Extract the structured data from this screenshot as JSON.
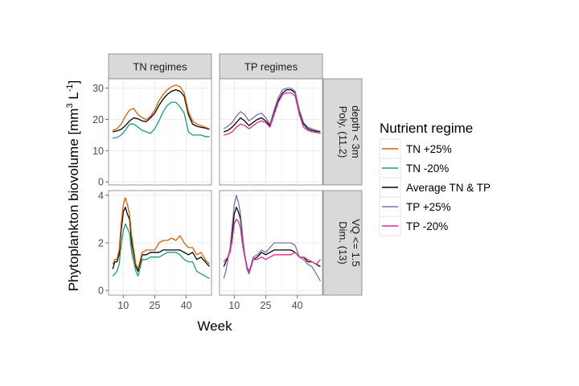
{
  "chart_data": {
    "type": "line",
    "ylabel_main": "Phytoplankton biovolume [mm",
    "ylabel_sup1": "3",
    "ylabel_mid": " L",
    "ylabel_sup2": "-1",
    "ylabel_end": "]",
    "xlabel": "Week",
    "column_strips": [
      "TN regimes",
      "TP regimes"
    ],
    "row_strips": [
      [
        "Poly. (11.2)",
        "depth < 3m"
      ],
      [
        "Dim. (13)",
        "VQ <= 1.5"
      ]
    ],
    "x_ticks": [
      "10",
      "25",
      "40"
    ],
    "x_tick_values": [
      10,
      25,
      40
    ],
    "xlim": [
      3,
      52
    ],
    "rows": [
      {
        "ylim": [
          -1,
          33
        ],
        "y_ticks": [
          "0",
          "10",
          "20",
          "30"
        ],
        "y_tick_values": [
          0,
          10,
          20,
          30
        ]
      },
      {
        "ylim": [
          -0.2,
          4.2
        ],
        "y_ticks": [
          "0",
          "2",
          "4"
        ],
        "y_tick_values": [
          0,
          2,
          4
        ]
      }
    ],
    "legend": {
      "title": "Nutrient regime",
      "placement": "right",
      "entries": [
        {
          "label": "TN +25%",
          "color": "#D95F02"
        },
        {
          "label": "TN -20%",
          "color": "#1B9E77"
        },
        {
          "label": "Average TN & TP",
          "color": "#000000"
        },
        {
          "label": "TP +25%",
          "color": "#7570B3"
        },
        {
          "label": "TP -20%",
          "color": "#E7298A"
        }
      ]
    },
    "panels": [
      {
        "column": 0,
        "row": 0,
        "series": [
          {
            "legend_index": 2,
            "x": [
              5,
              7,
              9,
              11,
              13,
              15,
              17,
              19,
              21,
              23,
              25,
              27,
              29,
              31,
              33,
              35,
              37,
              39,
              41,
              43,
              45,
              47,
              49,
              51
            ],
            "values": [
              16,
              16.3,
              16.8,
              18,
              19.5,
              20.5,
              20.2,
              19.5,
              19.3,
              20.5,
              22,
              24.5,
              26.5,
              28,
              29,
              29.5,
              29,
              27.5,
              21.5,
              18.5,
              17.8,
              17.5,
              17.2,
              16.8
            ]
          },
          {
            "legend_index": 0,
            "x": [
              5,
              7,
              9,
              11,
              13,
              15,
              17,
              19,
              21,
              23,
              25,
              27,
              29,
              31,
              33,
              35,
              37,
              39,
              41,
              43,
              45,
              47,
              49,
              51
            ],
            "values": [
              16.5,
              17,
              18.5,
              21,
              23,
              23.5,
              21.5,
              20.5,
              20,
              21,
              23,
              26,
              28,
              29.5,
              30.5,
              31,
              30.5,
              28.5,
              22.5,
              19.5,
              18.5,
              18,
              17.5,
              17
            ]
          },
          {
            "legend_index": 1,
            "x": [
              5,
              7,
              9,
              11,
              13,
              15,
              17,
              19,
              21,
              23,
              25,
              27,
              29,
              31,
              33,
              35,
              37,
              39,
              41,
              43,
              45,
              47,
              49,
              51
            ],
            "values": [
              14,
              14.2,
              15,
              16.5,
              18.5,
              18.5,
              17.5,
              16.5,
              16,
              15.5,
              17,
              19.5,
              22.5,
              24.5,
              25.5,
              25.5,
              24,
              22,
              16,
              15,
              15,
              15,
              14.5,
              14.5
            ]
          }
        ]
      },
      {
        "column": 1,
        "row": 0,
        "series": [
          {
            "legend_index": 2,
            "x": [
              5,
              7,
              9,
              11,
              13,
              15,
              17,
              19,
              21,
              23,
              25,
              27,
              29,
              31,
              33,
              35,
              37,
              39,
              41,
              43,
              45,
              47,
              49,
              51
            ],
            "values": [
              16,
              16.5,
              17.5,
              19,
              20.5,
              19.5,
              18,
              19,
              20,
              20.5,
              19.5,
              18,
              22,
              26,
              28.5,
              29.5,
              29.5,
              28.5,
              22.5,
              18.5,
              17,
              16.5,
              16.2,
              16
            ]
          },
          {
            "legend_index": 3,
            "x": [
              5,
              7,
              9,
              11,
              13,
              15,
              17,
              19,
              21,
              23,
              25,
              27,
              29,
              31,
              33,
              35,
              37,
              39,
              41,
              43,
              45,
              47,
              49,
              51
            ],
            "values": [
              17,
              17.8,
              19,
              21,
              22.5,
              21.5,
              19.5,
              20.5,
              21.5,
              22,
              20.5,
              18.5,
              23,
              27,
              29.5,
              30,
              30,
              29,
              23,
              19,
              17.5,
              17,
              16.5,
              16.2
            ]
          },
          {
            "legend_index": 4,
            "x": [
              5,
              7,
              9,
              11,
              13,
              15,
              17,
              19,
              21,
              23,
              25,
              27,
              29,
              31,
              33,
              35,
              37,
              39,
              41,
              43,
              45,
              47,
              49,
              51
            ],
            "values": [
              15,
              15.3,
              16,
              17.5,
              18.5,
              18,
              17,
              18,
              19,
              19.5,
              19,
              17.5,
              21.5,
              25.5,
              28,
              28.5,
              28.5,
              27.5,
              21.5,
              17.5,
              16.5,
              16,
              15.8,
              15.5
            ]
          }
        ]
      },
      {
        "column": 0,
        "row": 1,
        "series": [
          {
            "legend_index": 2,
            "x": [
              5,
              6,
              7,
              8,
              9,
              10,
              11,
              12,
              13,
              14,
              15,
              16,
              17,
              19,
              21,
              23,
              25,
              27,
              29,
              31,
              33,
              35,
              37,
              39,
              41,
              43,
              45,
              47,
              49,
              51
            ],
            "values": [
              0.9,
              1.2,
              1.2,
              1.5,
              2.5,
              3.3,
              3.5,
              3.2,
              3,
              2,
              1.5,
              1,
              0.8,
              1.5,
              1.5,
              1.6,
              1.6,
              1.6,
              1.7,
              1.7,
              1.7,
              1.7,
              1.7,
              1.6,
              1.5,
              1.6,
              1.3,
              1.4,
              1.2,
              1
            ]
          },
          {
            "legend_index": 0,
            "x": [
              5,
              6,
              7,
              8,
              9,
              10,
              11,
              12,
              13,
              14,
              15,
              16,
              17,
              19,
              21,
              23,
              25,
              27,
              29,
              31,
              33,
              35,
              37,
              39,
              41,
              43,
              45,
              47,
              49,
              51
            ],
            "values": [
              1.1,
              1.3,
              1.3,
              1.7,
              2.8,
              3.6,
              3.9,
              3.6,
              3.2,
              2.3,
              1.7,
              1.1,
              0.9,
              1.6,
              1.7,
              1.7,
              1.7,
              2,
              2.1,
              2.1,
              2.2,
              2.1,
              2.3,
              2,
              1.8,
              1.8,
              1.5,
              1.6,
              1.3,
              1.1
            ]
          },
          {
            "legend_index": 1,
            "x": [
              5,
              6,
              7,
              8,
              9,
              10,
              11,
              12,
              13,
              14,
              15,
              16,
              17,
              19,
              21,
              23,
              25,
              27,
              29,
              31,
              33,
              35,
              37,
              39,
              41,
              43,
              45,
              47,
              49,
              51
            ],
            "values": [
              0.6,
              0.7,
              0.8,
              1.1,
              1.9,
              2.5,
              2.8,
              2.6,
              2.4,
              1.6,
              1.2,
              0.8,
              0.6,
              1.3,
              1.3,
              1.4,
              1.4,
              1.4,
              1.5,
              1.6,
              1.6,
              1.6,
              1.5,
              1.3,
              1.2,
              1.2,
              0.8,
              0.7,
              0.6,
              0.5
            ]
          }
        ]
      },
      {
        "column": 1,
        "row": 1,
        "series": [
          {
            "legend_index": 2,
            "x": [
              5,
              6,
              7,
              8,
              9,
              10,
              11,
              12,
              13,
              14,
              15,
              16,
              17,
              19,
              21,
              23,
              25,
              27,
              29,
              31,
              33,
              35,
              37,
              39,
              41,
              43,
              45,
              47,
              49,
              51
            ],
            "values": [
              1,
              1.2,
              1.4,
              1.7,
              2.3,
              3.2,
              3.5,
              3.3,
              3,
              2.2,
              1.5,
              1,
              0.7,
              1.3,
              1.4,
              1.6,
              1.5,
              1.6,
              1.7,
              1.7,
              1.7,
              1.7,
              1.7,
              1.6,
              1.4,
              1.4,
              1.2,
              1.2,
              1.1,
              1
            ]
          },
          {
            "legend_index": 3,
            "x": [
              5,
              6,
              7,
              8,
              9,
              10,
              11,
              12,
              13,
              14,
              15,
              16,
              17,
              19,
              21,
              23,
              25,
              27,
              29,
              31,
              33,
              35,
              37,
              39,
              41,
              43,
              45,
              47,
              49,
              51
            ],
            "values": [
              0.5,
              0.8,
              1.3,
              1.8,
              2.7,
              3.6,
              4,
              3.7,
              3.2,
              2.3,
              1.5,
              0.9,
              0.7,
              1.4,
              1.5,
              1.7,
              1.6,
              1.8,
              2,
              2,
              2,
              2,
              2,
              1.9,
              1.4,
              1.3,
              1.1,
              1,
              0.7,
              0.4
            ]
          },
          {
            "legend_index": 4,
            "x": [
              5,
              6,
              7,
              8,
              9,
              10,
              11,
              12,
              13,
              14,
              15,
              16,
              17,
              19,
              21,
              23,
              25,
              27,
              29,
              31,
              33,
              35,
              37,
              39,
              41,
              43,
              45,
              47,
              49,
              51
            ],
            "values": [
              1.2,
              1.3,
              1.4,
              1.6,
              2.1,
              2.8,
              3,
              2.9,
              2.6,
              1.9,
              1.4,
              1,
              0.8,
              1.3,
              1.3,
              1.4,
              1.3,
              1.4,
              1.5,
              1.5,
              1.5,
              1.5,
              1.5,
              1.6,
              1.4,
              1.4,
              1.3,
              1.2,
              1.1,
              1.3
            ]
          }
        ]
      }
    ]
  }
}
